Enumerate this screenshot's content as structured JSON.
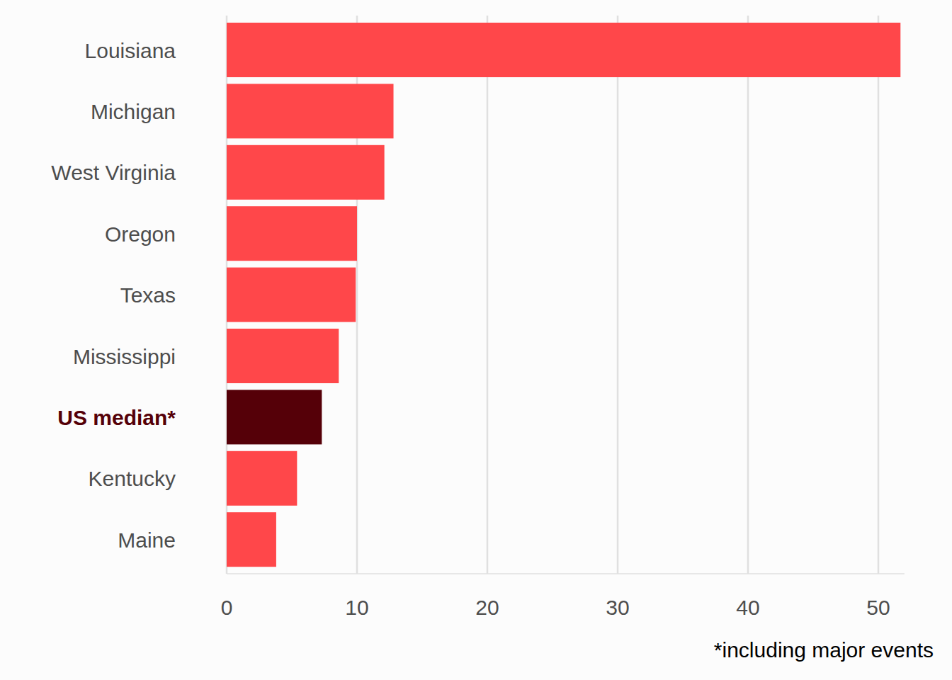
{
  "chart_data": {
    "type": "bar",
    "orientation": "horizontal",
    "categories": [
      "Louisiana",
      "Michigan",
      "West Virginia",
      "Oregon",
      "Texas",
      "Mississippi",
      "US median*",
      "Kentucky",
      "Maine"
    ],
    "values": [
      51.7,
      12.8,
      12.1,
      10.0,
      9.9,
      8.6,
      7.3,
      5.4,
      3.8
    ],
    "colors": [
      "#ff474a",
      "#ff474a",
      "#ff474a",
      "#ff474a",
      "#ff474a",
      "#ff474a",
      "#550008",
      "#ff474a",
      "#ff474a"
    ],
    "xlim": [
      0,
      52
    ],
    "xticks": [
      0,
      10,
      20,
      30,
      40,
      50
    ],
    "grid": true,
    "annotations": [
      "*including major events"
    ]
  }
}
